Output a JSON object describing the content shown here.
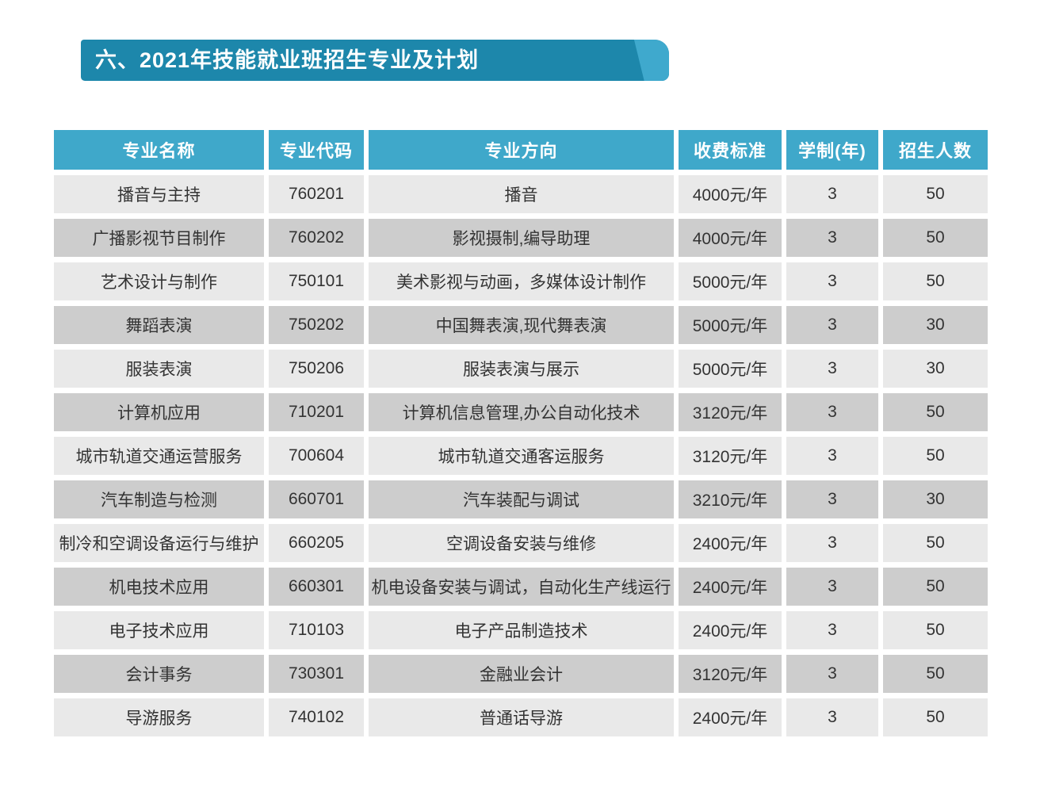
{
  "banner": {
    "title": "六、2021年技能就业班招生专业及计划"
  },
  "table": {
    "headers": [
      "专业名称",
      "专业代码",
      "专业方向",
      "收费标准",
      "学制(年)",
      "招生人数"
    ],
    "rows": [
      [
        "播音与主持",
        "760201",
        "播音",
        "4000元/年",
        "3",
        "50"
      ],
      [
        "广播影视节目制作",
        "760202",
        "影视摄制,编导助理",
        "4000元/年",
        "3",
        "50"
      ],
      [
        "艺术设计与制作",
        "750101",
        "美术影视与动画，多媒体设计制作",
        "5000元/年",
        "3",
        "50"
      ],
      [
        "舞蹈表演",
        "750202",
        "中国舞表演,现代舞表演",
        "5000元/年",
        "3",
        "30"
      ],
      [
        "服装表演",
        "750206",
        "服装表演与展示",
        "5000元/年",
        "3",
        "30"
      ],
      [
        "计算机应用",
        "710201",
        "计算机信息管理,办公自动化技术",
        "3120元/年",
        "3",
        "50"
      ],
      [
        "城市轨道交通运营服务",
        "700604",
        "城市轨道交通客运服务",
        "3120元/年",
        "3",
        "50"
      ],
      [
        "汽车制造与检测",
        "660701",
        "汽车装配与调试",
        "3210元/年",
        "3",
        "30"
      ],
      [
        "制冷和空调设备运行与维护",
        "660205",
        "空调设备安装与维修",
        "2400元/年",
        "3",
        "50"
      ],
      [
        "机电技术应用",
        "660301",
        "机电设备安装与调试，自动化生产线运行",
        "2400元/年",
        "3",
        "50"
      ],
      [
        "电子技术应用",
        "710103",
        "电子产品制造技术",
        "2400元/年",
        "3",
        "50"
      ],
      [
        "会计事务",
        "730301",
        "金融业会计",
        "3120元/年",
        "3",
        "50"
      ],
      [
        "导游服务",
        "740102",
        "普通话导游",
        "2400元/年",
        "3",
        "50"
      ]
    ]
  },
  "colors": {
    "banner_bg": "#1d87ab",
    "banner_accent": "#3fa9cd",
    "header_bg": "#3fa8ca",
    "header_text": "#ffffff",
    "row_light": "#e9e9e9",
    "row_dark": "#cdcdcd",
    "cell_text": "#333333",
    "page_bg": "#ffffff"
  }
}
